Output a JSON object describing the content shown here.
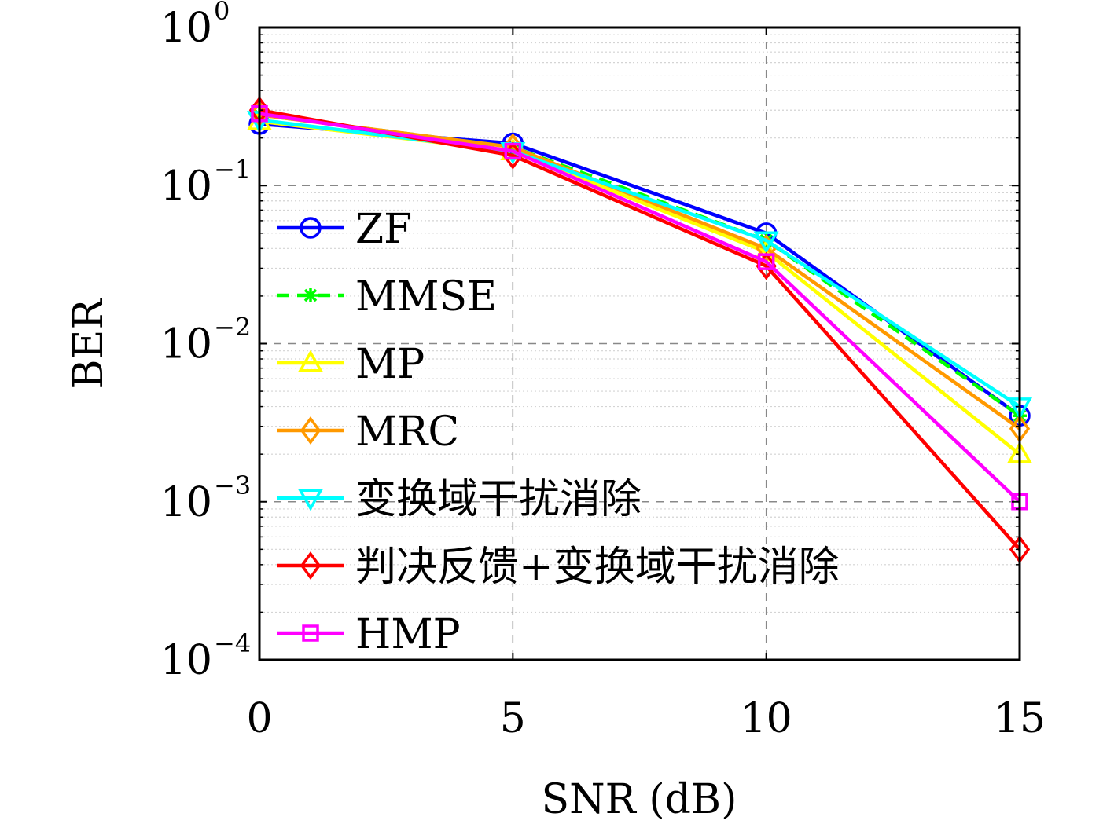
{
  "chart_data": {
    "type": "line",
    "title": "",
    "xlabel": "SNR (dB)",
    "ylabel": "BER",
    "x": [
      0,
      5,
      10,
      15
    ],
    "xlim": [
      0,
      15
    ],
    "ylim": [
      0.0001,
      1
    ],
    "yscale": "log",
    "x_ticks": [
      0,
      5,
      10,
      15
    ],
    "x_tick_labels": [
      "0",
      "5",
      "10",
      "15"
    ],
    "y_ticks": [
      {
        "value": 1,
        "base": "10",
        "exp": "0"
      },
      {
        "value": 0.1,
        "base": "10",
        "exp": "−1"
      },
      {
        "value": 0.01,
        "base": "10",
        "exp": "−2"
      },
      {
        "value": 0.001,
        "base": "10",
        "exp": "−3"
      },
      {
        "value": 0.0001,
        "base": "10",
        "exp": "−4"
      }
    ],
    "grid": true,
    "legend_position": "left",
    "series": [
      {
        "name": "ZF",
        "color": "#0000ff",
        "marker": "circle",
        "dash": false,
        "values": [
          0.245,
          0.185,
          0.05,
          0.0035
        ]
      },
      {
        "name": "MMSE",
        "color": "#00ff00",
        "marker": "asterisk",
        "dash": true,
        "values": [
          0.28,
          0.175,
          0.045,
          0.0035
        ]
      },
      {
        "name": "MP",
        "color": "#ffff00",
        "marker": "triangle-up",
        "dash": false,
        "values": [
          0.255,
          0.165,
          0.038,
          0.002
        ]
      },
      {
        "name": "MRC",
        "color": "#ff9900",
        "marker": "diamond",
        "dash": false,
        "values": [
          0.28,
          0.175,
          0.04,
          0.0029
        ]
      },
      {
        "name": "变换域干扰消除",
        "color": "#00ffff",
        "marker": "triangle-down",
        "dash": false,
        "values": [
          0.26,
          0.165,
          0.045,
          0.004
        ]
      },
      {
        "name": "判决反馈+变换域干扰消除",
        "color": "#ff0000",
        "marker": "diamond",
        "dash": false,
        "values": [
          0.3,
          0.155,
          0.031,
          0.0005
        ]
      },
      {
        "name": "HMP",
        "color": "#ff00ff",
        "marker": "square",
        "dash": false,
        "values": [
          0.285,
          0.165,
          0.033,
          0.001
        ]
      }
    ]
  }
}
